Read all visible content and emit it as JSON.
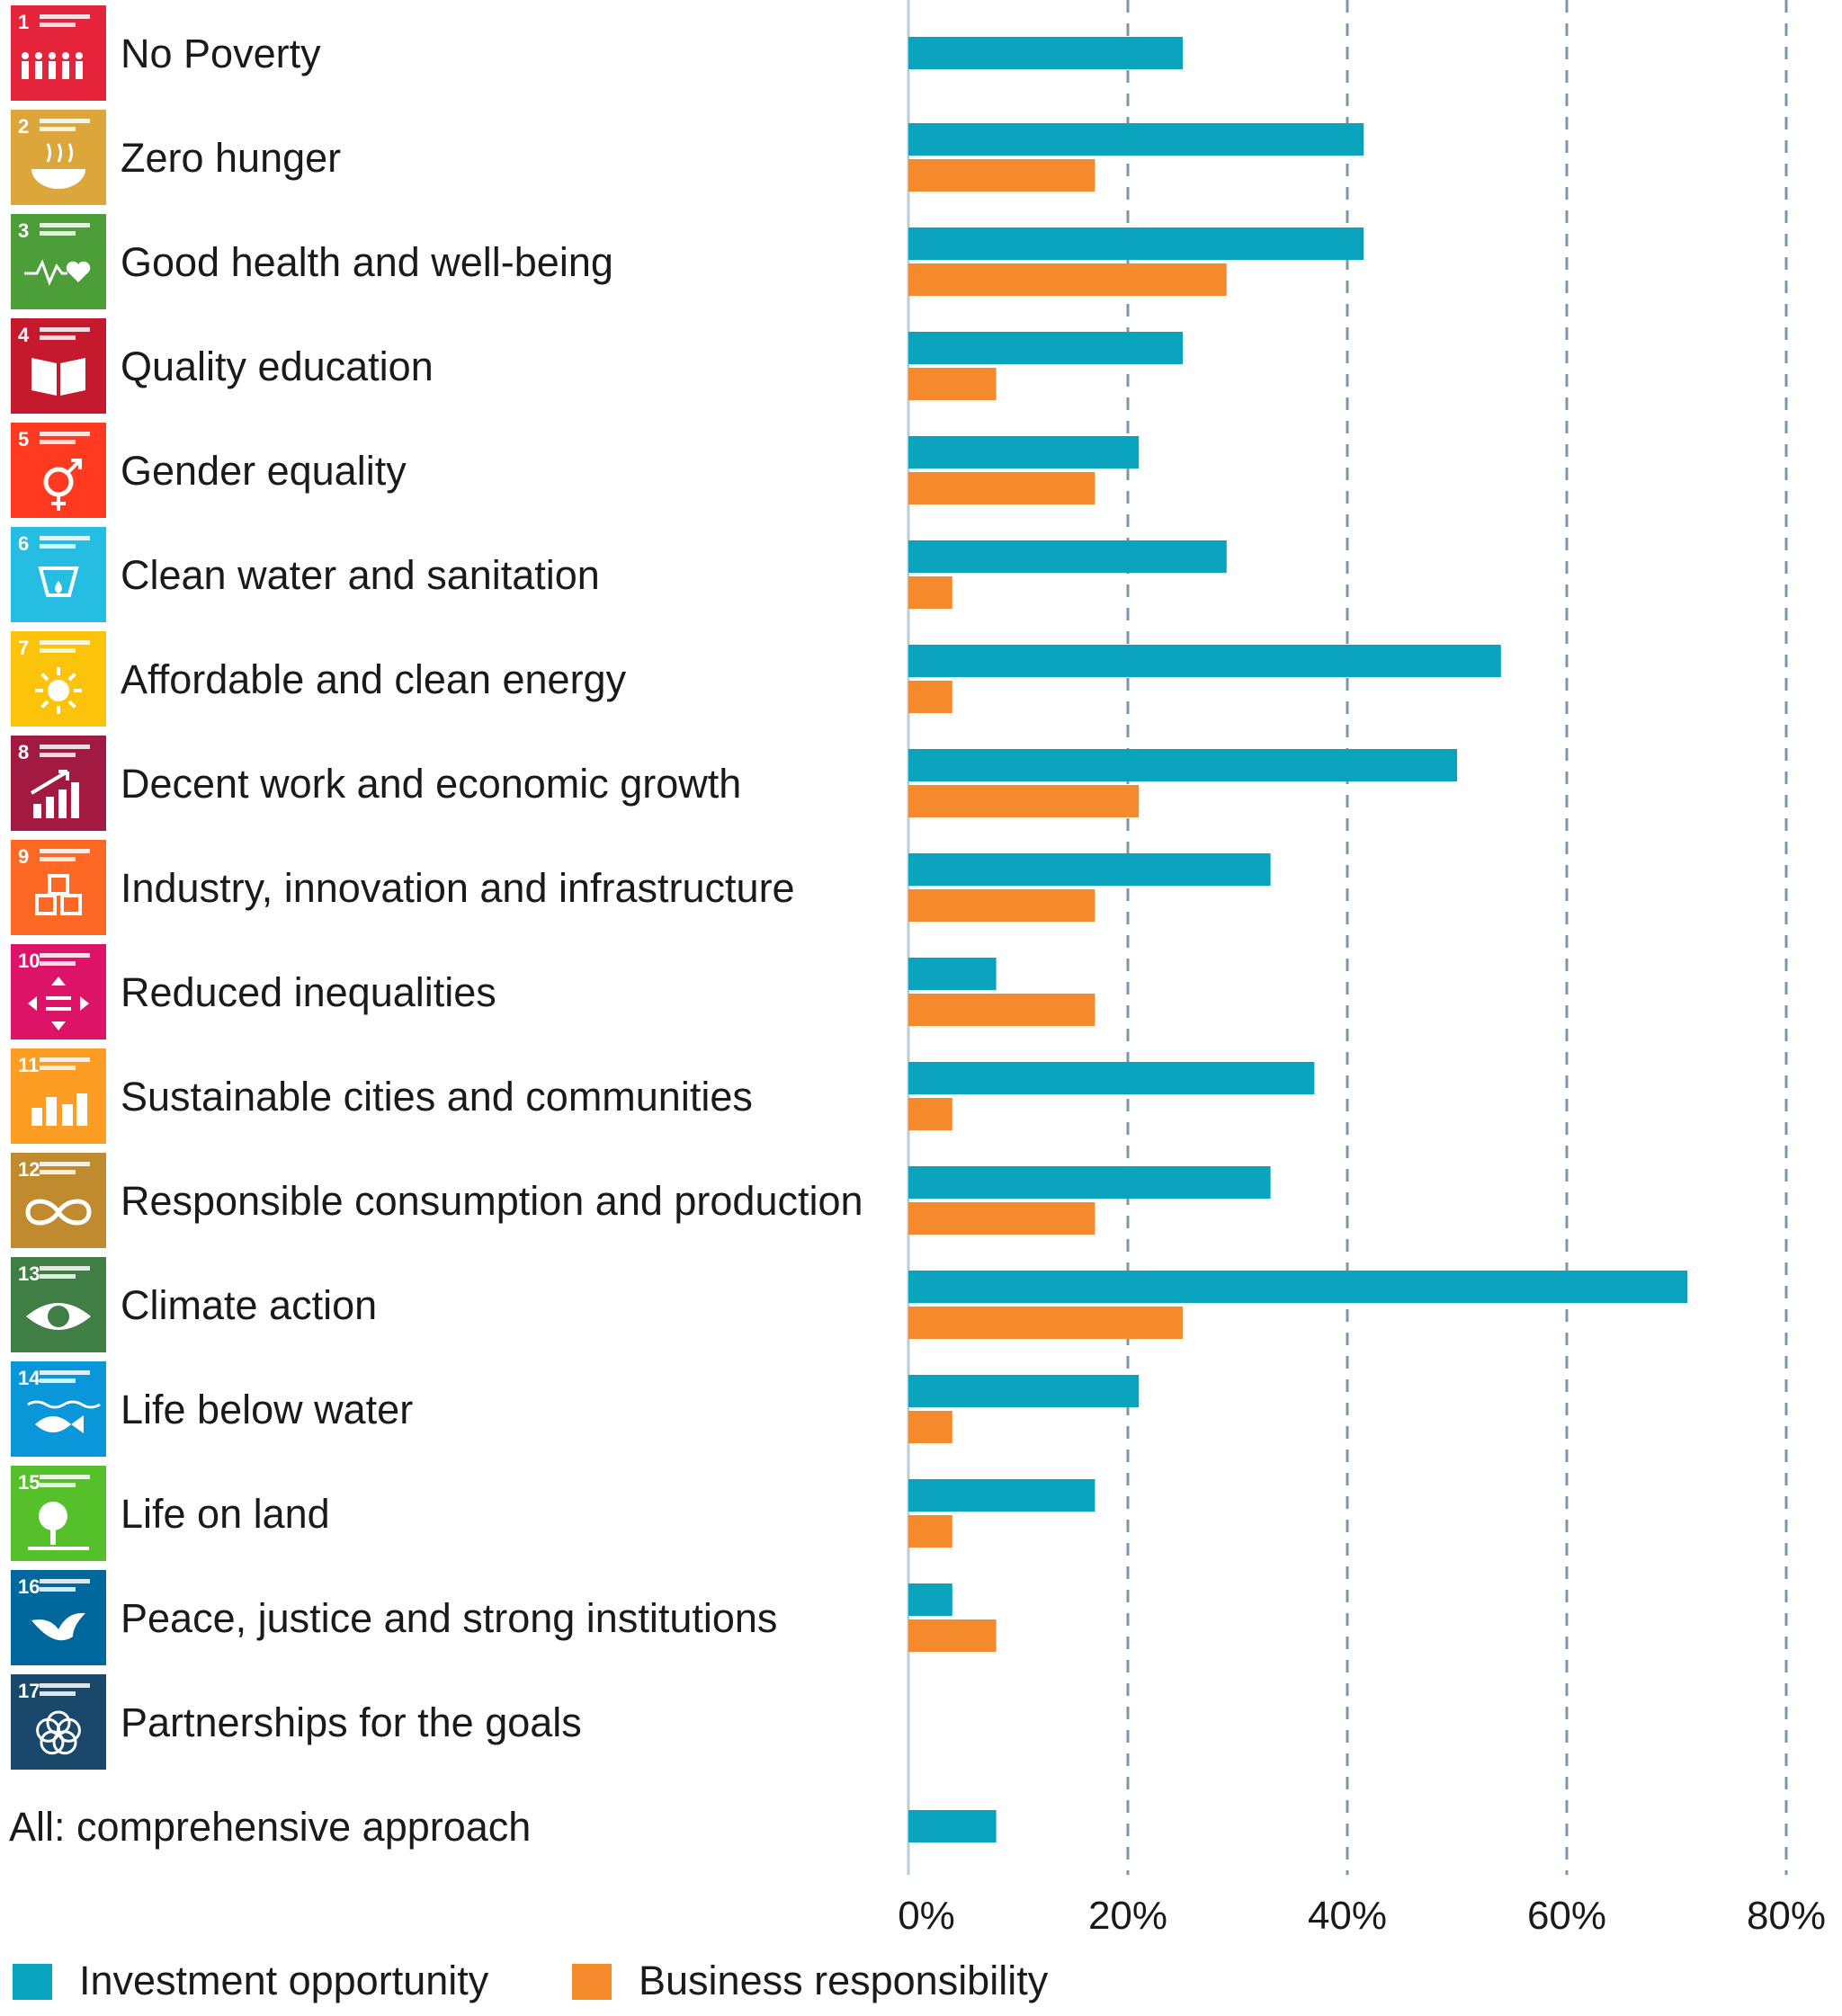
{
  "chart_data": {
    "type": "bar",
    "orientation": "horizontal",
    "categories": [
      "No Poverty",
      "Zero hunger",
      "Good health and well-being",
      "Quality education",
      "Gender equality",
      "Clean water and sanitation",
      "Affordable and clean energy",
      "Decent work and economic growth",
      "Industry, innovation and infrastructure",
      "Reduced inequalities",
      "Sustainable cities and communities",
      "Responsible consumption and production",
      "Climate action",
      "Life below water",
      "Life on land",
      "Peace, justice and strong institutions",
      "Partnerships for the goals",
      "All: comprehensive approach"
    ],
    "series": [
      {
        "name": "Investment opportunity",
        "color": "#0aa3bd",
        "values": [
          25,
          41.5,
          41.5,
          25,
          21,
          29,
          54,
          50,
          33,
          8,
          37,
          33,
          71,
          21,
          17,
          4,
          null,
          8
        ]
      },
      {
        "name": "Business responsibility",
        "color": "#f58a2c",
        "values": [
          null,
          17,
          29,
          8,
          17,
          4,
          4,
          21,
          17,
          17,
          4,
          17,
          25,
          4,
          4,
          8,
          null,
          null
        ]
      }
    ],
    "x_ticks": [
      "0%",
      "20%",
      "40%",
      "60%",
      "80%"
    ],
    "xlim": [
      0,
      80
    ],
    "grid": true,
    "legend_position": "bottom-left",
    "sdg_icons": [
      {
        "num": "1",
        "color": "#e5243b",
        "icon": "family-icon"
      },
      {
        "num": "2",
        "color": "#dda63a",
        "icon": "bowl-icon"
      },
      {
        "num": "3",
        "color": "#4c9f38",
        "icon": "heartbeat-icon"
      },
      {
        "num": "4",
        "color": "#c5192d",
        "icon": "book-icon"
      },
      {
        "num": "5",
        "color": "#ff3a21",
        "icon": "gender-symbol-icon"
      },
      {
        "num": "6",
        "color": "#26bde2",
        "icon": "water-drop-icon"
      },
      {
        "num": "7",
        "color": "#fcc30b",
        "icon": "sun-icon"
      },
      {
        "num": "8",
        "color": "#a21942",
        "icon": "growth-chart-icon"
      },
      {
        "num": "9",
        "color": "#fd6925",
        "icon": "cubes-icon"
      },
      {
        "num": "10",
        "color": "#dd1367",
        "icon": "equality-arrows-icon"
      },
      {
        "num": "11",
        "color": "#fd9d24",
        "icon": "city-buildings-icon"
      },
      {
        "num": "12",
        "color": "#bf8b2e",
        "icon": "infinity-icon"
      },
      {
        "num": "13",
        "color": "#3f7e44",
        "icon": "eye-globe-icon"
      },
      {
        "num": "14",
        "color": "#0a97d9",
        "icon": "fish-icon"
      },
      {
        "num": "15",
        "color": "#56c02b",
        "icon": "tree-icon"
      },
      {
        "num": "16",
        "color": "#00689d",
        "icon": "dove-icon"
      },
      {
        "num": "17",
        "color": "#19486a",
        "icon": "flower-rings-icon"
      }
    ]
  }
}
